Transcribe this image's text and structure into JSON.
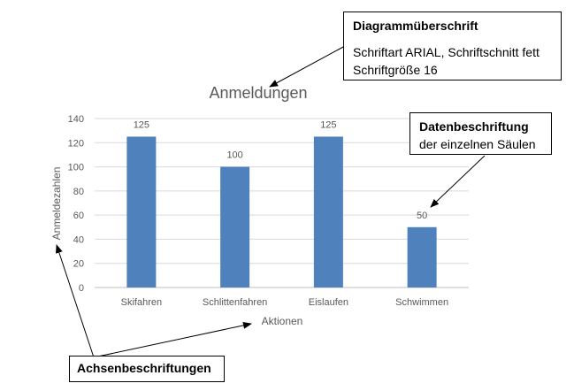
{
  "chart_data": {
    "type": "bar",
    "title": "Anmeldungen",
    "xlabel": "Aktionen",
    "ylabel": "Anmeldezahlen",
    "categories": [
      "Skifahren",
      "Schlittenfahren",
      "Eislaufen",
      "Schwimmen"
    ],
    "values": [
      125,
      100,
      125,
      50
    ],
    "data_labels": [
      "125",
      "100",
      "125",
      "50"
    ],
    "ylim": [
      0,
      140
    ],
    "yticks": [
      "0",
      "20",
      "40",
      "60",
      "80",
      "100",
      "120",
      "140"
    ],
    "grid": true,
    "legend": "none",
    "bar_color": "#4F81BD"
  },
  "callouts": {
    "title_box": {
      "heading": "Diagrammüberschrift",
      "line1": "Schriftart ARIAL, Schriftschnitt fett",
      "line2": "Schriftgröße 16"
    },
    "labels_box": {
      "heading": "Datenbeschriftung",
      "line1": "der einzelnen Säulen"
    },
    "axes_box": {
      "heading": "Achsenbeschriftungen"
    }
  },
  "colors": {
    "bar": "#4F81BD",
    "grid": "#D9D9D9",
    "axis_text": "#595959",
    "title_text": "#595959",
    "arrow": "#000000"
  }
}
